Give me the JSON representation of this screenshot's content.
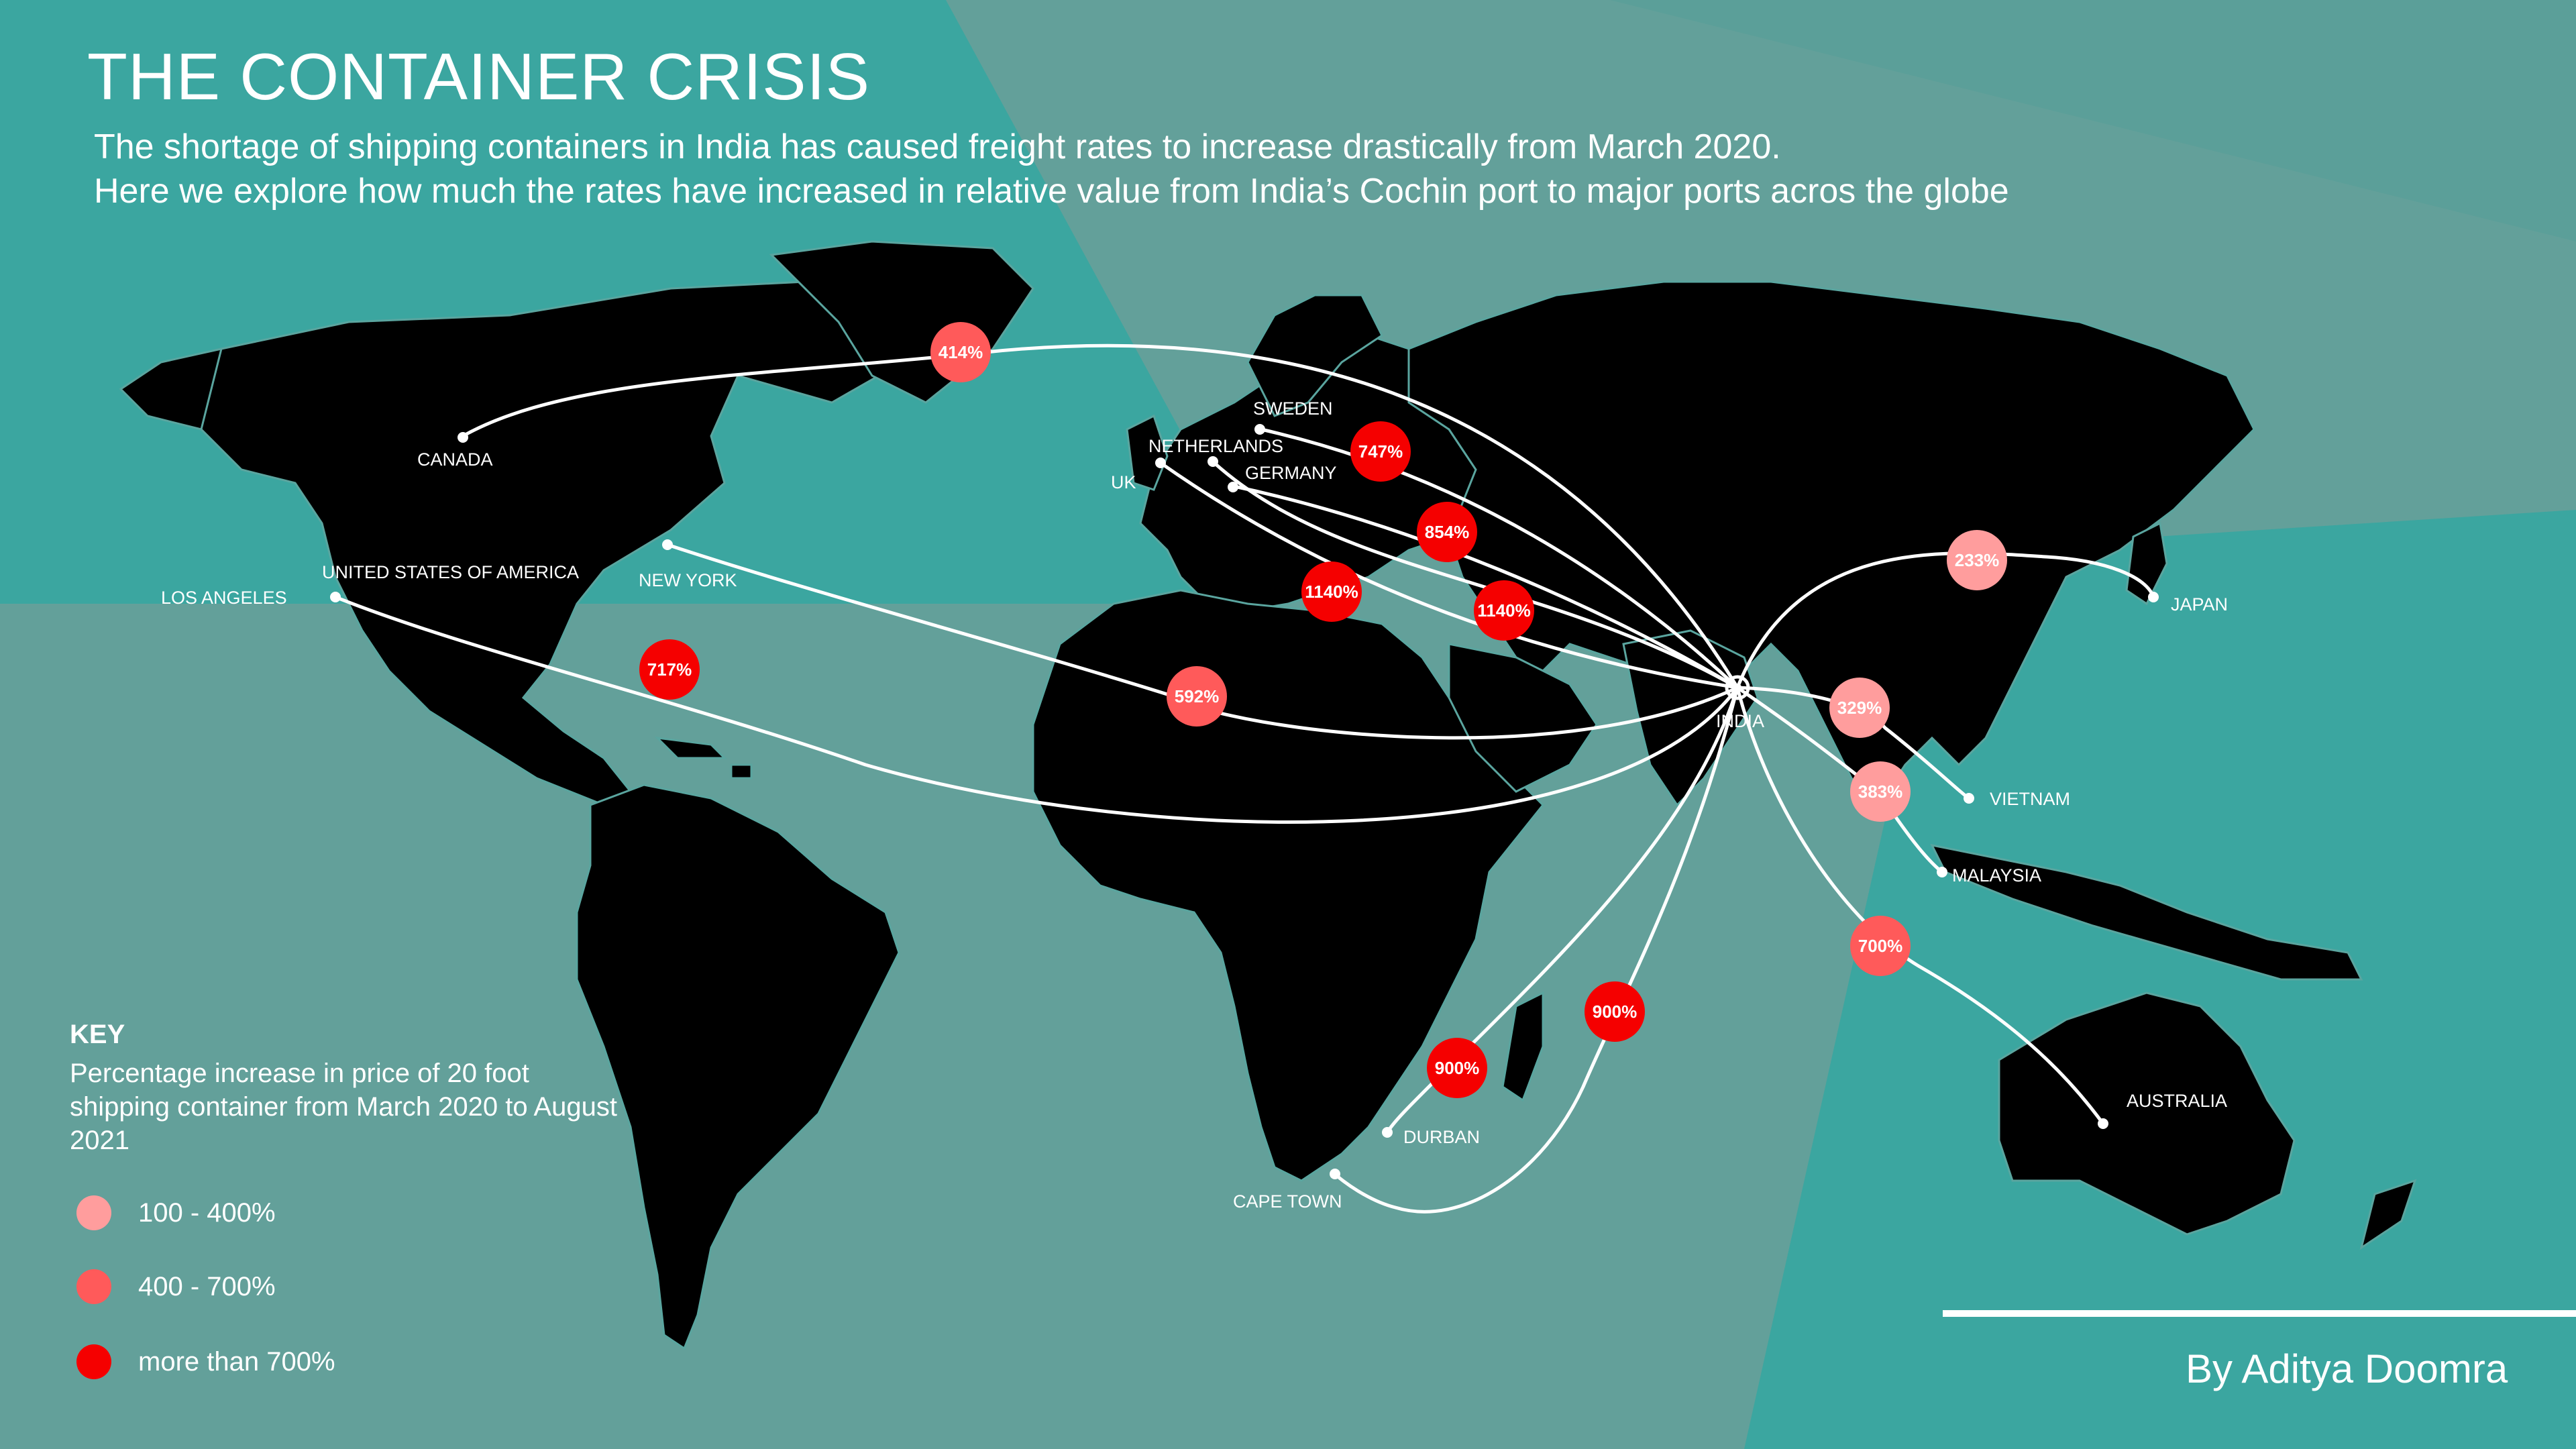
{
  "header": {
    "title": "THE CONTAINER CRISIS",
    "subtitle_line1": "The shortage of shipping containers in India has caused freight rates to increase drastically from March 2020.",
    "subtitle_line2": "Here we explore how much the rates have increased in relative value from India’s Cochin port to major ports acros the globe"
  },
  "colors": {
    "background": "#63a09a",
    "teal_accent": "#3ba6a0",
    "land": "#000000",
    "borders": "#5aa59f",
    "low": "#ff9d9d",
    "mid": "#ff5a5a",
    "high": "#f50000"
  },
  "origin": {
    "label": "INDIA"
  },
  "ports": [
    {
      "id": "canada",
      "label": "CANADA",
      "increase": "414%",
      "tier": "mid"
    },
    {
      "id": "sweden",
      "label": "SWEDEN",
      "increase": "747%",
      "tier": "high"
    },
    {
      "id": "netherlands",
      "label": "NETHERLANDS",
      "increase": "1140%",
      "tier": "high"
    },
    {
      "id": "germany",
      "label": "GERMANY",
      "increase": "854%",
      "tier": "high"
    },
    {
      "id": "uk",
      "label": "UK",
      "increase": "1140%",
      "tier": "high"
    },
    {
      "id": "new-york",
      "label": "NEW YORK",
      "increase": "592%",
      "tier": "mid"
    },
    {
      "id": "los-angeles",
      "label": "LOS ANGELES",
      "increase": "717%",
      "tier": "high"
    },
    {
      "id": "japan",
      "label": "JAPAN",
      "increase": "233%",
      "tier": "low"
    },
    {
      "id": "vietnam",
      "label": "VIETNAM",
      "increase": "329%",
      "tier": "low"
    },
    {
      "id": "malaysia",
      "label": "MALAYSIA",
      "increase": "383%",
      "tier": "low"
    },
    {
      "id": "australia",
      "label": "AUSTRALIA",
      "increase": "700%",
      "tier": "mid"
    },
    {
      "id": "durban",
      "label": "DURBAN",
      "increase": "900%",
      "tier": "high"
    },
    {
      "id": "cape-town",
      "label": "CAPE TOWN",
      "increase": "900%",
      "tier": "high"
    }
  ],
  "extra_labels": {
    "usa": "UNITED STATES OF AMERICA"
  },
  "key": {
    "title": "KEY",
    "description": "Percentage increase in price of 20 foot shipping container from March 2020 to August 2021",
    "items": [
      {
        "label": "100 - 400%",
        "color": "#ff9d9d"
      },
      {
        "label": "400 - 700%",
        "color": "#ff5a5a"
      },
      {
        "label": "more than 700%",
        "color": "#f50000"
      }
    ]
  },
  "author": "By Aditya Doomra"
}
